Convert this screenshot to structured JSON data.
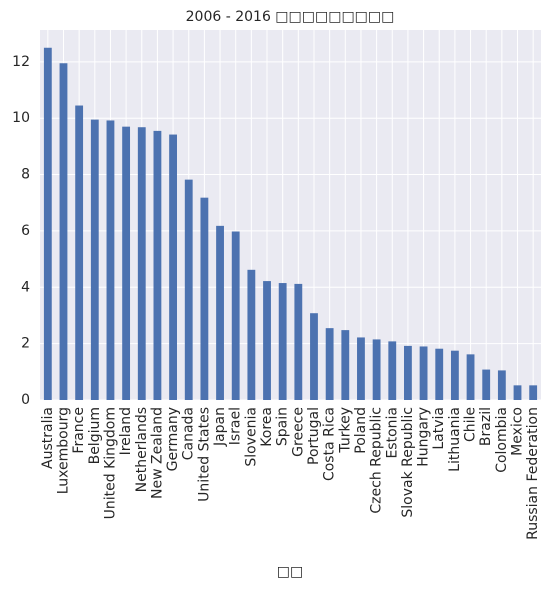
{
  "chart_data": {
    "type": "bar",
    "title": "2006 - 2016 □□□□□□□□□",
    "x_label": "□□",
    "categories": [
      "Australia",
      "Luxembourg",
      "France",
      "Belgium",
      "United Kingdom",
      "Ireland",
      "Netherlands",
      "New Zealand",
      "Germany",
      "Canada",
      "United States",
      "Japan",
      "Israel",
      "Slovenia",
      "Korea",
      "Spain",
      "Greece",
      "Portugal",
      "Costa Rica",
      "Turkey",
      "Poland",
      "Czech Republic",
      "Estonia",
      "Slovak Republic",
      "Hungary",
      "Latvia",
      "Lithuania",
      "Chile",
      "Brazil",
      "Colombia",
      "Mexico",
      "Russian Federation"
    ],
    "values": [
      12.5,
      11.95,
      10.45,
      9.95,
      9.92,
      9.7,
      9.68,
      9.55,
      9.42,
      7.82,
      7.18,
      6.18,
      5.98,
      4.62,
      4.22,
      4.15,
      4.12,
      3.08,
      2.55,
      2.48,
      2.22,
      2.15,
      2.08,
      1.92,
      1.9,
      1.82,
      1.75,
      1.62,
      1.08,
      1.05,
      0.52,
      0.52
    ],
    "color": "#4c72b0",
    "ylim": [
      0,
      13.13
    ],
    "yticks": [
      0,
      2,
      4,
      6,
      8,
      10,
      12
    ],
    "grid": true
  }
}
